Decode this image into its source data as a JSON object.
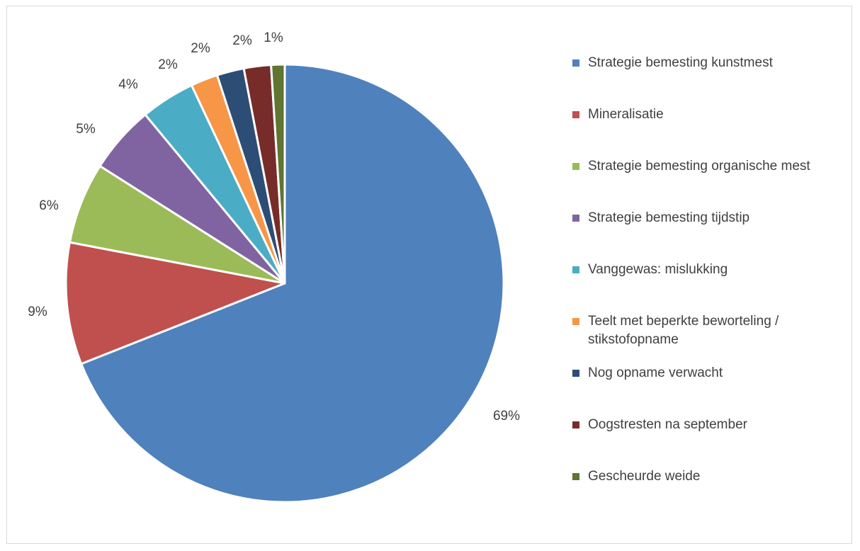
{
  "chart_data": {
    "type": "pie",
    "title": "",
    "slices": [
      {
        "label": "Strategie bemesting kunstmest",
        "value": 69,
        "value_label": "69%",
        "color": "#4F81BD"
      },
      {
        "label": "Mineralisatie",
        "value": 9,
        "value_label": "9%",
        "color": "#C0504D"
      },
      {
        "label": "Strategie bemesting organische mest",
        "value": 6,
        "value_label": "6%",
        "color": "#9BBB59"
      },
      {
        "label": "Strategie bemesting tijdstip",
        "value": 5,
        "value_label": "5%",
        "color": "#8064A2"
      },
      {
        "label": "Vanggewas: mislukking",
        "value": 4,
        "value_label": "4%",
        "color": "#4BACC6"
      },
      {
        "label": "Teelt met beperkte beworteling / stikstofopname",
        "value": 2,
        "value_label": "2%",
        "color": "#F79646"
      },
      {
        "label": "Nog opname verwacht",
        "value": 2,
        "value_label": "2%",
        "color": "#2C4D75"
      },
      {
        "label": "Oogstresten na september",
        "value": 2,
        "value_label": "2%",
        "color": "#772C2A"
      },
      {
        "label": "Gescheurde weide",
        "value": 1,
        "value_label": "1%",
        "color": "#5F7530"
      }
    ],
    "legend_position": "right"
  }
}
